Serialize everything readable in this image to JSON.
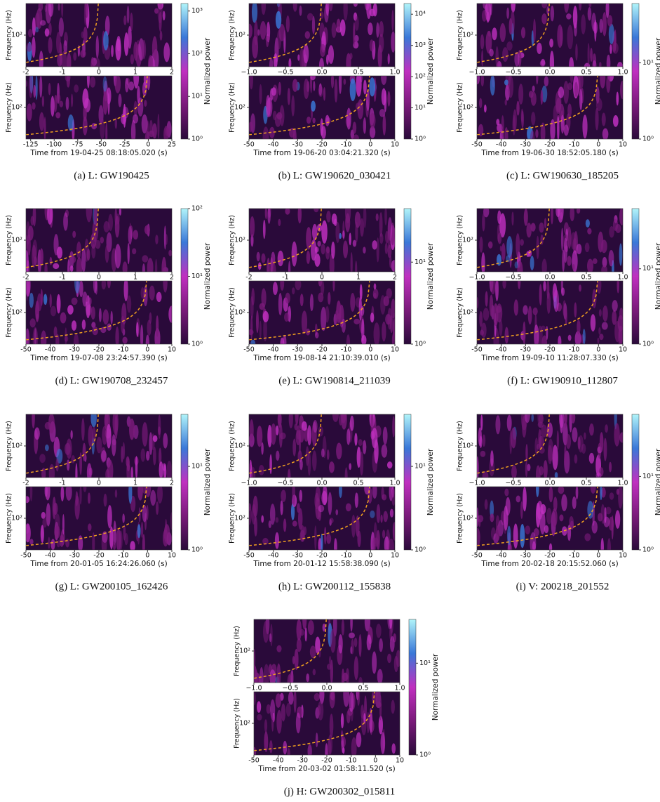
{
  "chart_data": [
    {
      "type": "spectrogram",
      "caption": "(a) L: GW190425",
      "ylabel": "Frequency (Hz)",
      "yscale": "log",
      "ylim": [
        20,
        500
      ],
      "yticks": [
        {
          "value": 100,
          "label": "10²"
        }
      ],
      "subplots": [
        {
          "xlim": [
            -2,
            2
          ],
          "xticks": [
            -2,
            -1,
            0,
            1,
            2
          ]
        },
        {
          "xlim": [
            -130,
            25
          ],
          "xticks": [
            -125,
            -100,
            -75,
            -50,
            -25,
            0,
            25
          ],
          "xlabel": "Time from 19-04-25 08:18:05.020 (s)"
        }
      ],
      "colorbar": {
        "label": "Normalized power",
        "scale": "log",
        "lim": [
          1,
          1500
        ],
        "ticks": [
          {
            "value": 1,
            "label": "10⁰"
          },
          {
            "value": 10,
            "label": "10¹"
          },
          {
            "value": 100,
            "label": "10²"
          },
          {
            "value": 1000,
            "label": "10³"
          }
        ]
      },
      "colormap": [
        "#2a0a3a",
        "#7a1a7a",
        "#c030c0",
        "#3a78d8",
        "#b0f4fa"
      ]
    },
    {
      "type": "spectrogram",
      "caption": "(b) L: GW190620_030421",
      "ylabel": "Frequency (Hz)",
      "yscale": "log",
      "ylim": [
        20,
        500
      ],
      "yticks": [
        {
          "value": 100,
          "label": "10²"
        }
      ],
      "subplots": [
        {
          "xlim": [
            -1,
            1
          ],
          "xticks": [
            {
              "value": -1,
              "label": "−1.0"
            },
            {
              "value": -0.5,
              "label": "−0.5"
            },
            {
              "value": 0,
              "label": "0.0"
            },
            {
              "value": 0.5,
              "label": "0.5"
            },
            {
              "value": 1,
              "label": "1.0"
            }
          ]
        },
        {
          "xlim": [
            -50,
            10
          ],
          "xticks": [
            -50,
            -40,
            -30,
            -20,
            -10,
            0,
            10
          ],
          "xlabel": "Time from 19-06-20 03:04:21.320 (s)"
        }
      ],
      "colorbar": {
        "label": "Normalized power",
        "scale": "log",
        "lim": [
          1,
          22000
        ],
        "ticks": [
          {
            "value": 1,
            "label": "10⁰"
          },
          {
            "value": 10,
            "label": "10¹"
          },
          {
            "value": 100,
            "label": "10²"
          },
          {
            "value": 1000,
            "label": "10³"
          },
          {
            "value": 10000,
            "label": "10⁴"
          }
        ]
      },
      "colormap": [
        "#2a0a3a",
        "#7a1a7a",
        "#c030c0",
        "#3a78d8",
        "#b0f4fa"
      ]
    },
    {
      "type": "spectrogram",
      "caption": "(c) L: GW190630_185205",
      "ylabel": "Frequency (Hz)",
      "yscale": "log",
      "ylim": [
        20,
        500
      ],
      "yticks": [
        {
          "value": 100,
          "label": "10²"
        }
      ],
      "subplots": [
        {
          "xlim": [
            -1,
            1
          ],
          "xticks": [
            {
              "value": -1,
              "label": "−1.0"
            },
            {
              "value": -0.5,
              "label": "−0.5"
            },
            {
              "value": 0,
              "label": "0.0"
            },
            {
              "value": 0.5,
              "label": "0.5"
            },
            {
              "value": 1,
              "label": "1.0"
            }
          ]
        },
        {
          "xlim": [
            -50,
            10
          ],
          "xticks": [
            -50,
            -40,
            -30,
            -20,
            -10,
            0,
            10
          ],
          "xlabel": "Time from 19-06-30 18:52:05.180 (s)"
        }
      ],
      "colorbar": {
        "label": "Normalized power",
        "scale": "log",
        "lim": [
          1,
          60
        ],
        "ticks": [
          {
            "value": 1,
            "label": "10⁰"
          },
          {
            "value": 10,
            "label": "10¹"
          }
        ]
      },
      "colormap": [
        "#2a0a3a",
        "#7a1a7a",
        "#c030c0",
        "#3a78d8",
        "#b0f4fa"
      ]
    },
    {
      "type": "spectrogram",
      "caption": "(d) L: GW190708_232457",
      "ylabel": "Frequency (Hz)",
      "yscale": "log",
      "ylim": [
        20,
        500
      ],
      "yticks": [
        {
          "value": 100,
          "label": "10²"
        }
      ],
      "subplots": [
        {
          "xlim": [
            -2,
            2
          ],
          "xticks": [
            -2,
            -1,
            0,
            1,
            2
          ]
        },
        {
          "xlim": [
            -50,
            10
          ],
          "xticks": [
            -50,
            -40,
            -30,
            -20,
            -10,
            0,
            10
          ],
          "xlabel": "Time from 19-07-08 23:24:57.390 (s)"
        }
      ],
      "colorbar": {
        "label": "Normalized power",
        "scale": "log",
        "lim": [
          1,
          100
        ],
        "ticks": [
          {
            "value": 1,
            "label": "10⁰"
          },
          {
            "value": 10,
            "label": "10¹"
          },
          {
            "value": 100,
            "label": "10²"
          }
        ]
      },
      "colormap": [
        "#2a0a3a",
        "#7a1a7a",
        "#c030c0",
        "#3a78d8",
        "#b0f4fa"
      ]
    },
    {
      "type": "spectrogram",
      "caption": "(e) L: GW190814_211039",
      "ylabel": "Frequency (Hz)",
      "yscale": "log",
      "ylim": [
        20,
        500
      ],
      "yticks": [
        {
          "value": 100,
          "label": "10²"
        }
      ],
      "subplots": [
        {
          "xlim": [
            -2,
            2
          ],
          "xticks": [
            -2,
            -1,
            0,
            1,
            2
          ]
        },
        {
          "xlim": [
            -50,
            10
          ],
          "xticks": [
            -50,
            -40,
            -30,
            -20,
            -10,
            0,
            10
          ],
          "xlabel": "Time from 19-08-14 21:10:39.010 (s)"
        }
      ],
      "colorbar": {
        "label": "Normalized power",
        "scale": "log",
        "lim": [
          1,
          45
        ],
        "ticks": [
          {
            "value": 1,
            "label": "10⁰"
          },
          {
            "value": 10,
            "label": "10¹"
          }
        ]
      },
      "colormap": [
        "#2a0a3a",
        "#7a1a7a",
        "#c030c0",
        "#3a78d8",
        "#b0f4fa"
      ]
    },
    {
      "type": "spectrogram",
      "caption": "(f) L: GW190910_112807",
      "ylabel": "Frequency (Hz)",
      "yscale": "log",
      "ylim": [
        20,
        500
      ],
      "yticks": [
        {
          "value": 100,
          "label": "10²"
        }
      ],
      "subplots": [
        {
          "xlim": [
            -1,
            1
          ],
          "xticks": [
            {
              "value": -1,
              "label": "−1.0"
            },
            {
              "value": -0.5,
              "label": "−0.5"
            },
            {
              "value": 0,
              "label": "0.0"
            },
            {
              "value": 0.5,
              "label": "0.5"
            },
            {
              "value": 1,
              "label": "1.0"
            }
          ]
        },
        {
          "xlim": [
            -50,
            10
          ],
          "xticks": [
            -50,
            -40,
            -30,
            -20,
            -10,
            0,
            10
          ],
          "xlabel": "Time from 19-09-10 11:28:07.330 (s)"
        }
      ],
      "colorbar": {
        "label": "Normalized power",
        "scale": "log",
        "lim": [
          1,
          63
        ],
        "ticks": [
          {
            "value": 1,
            "label": "10⁰"
          },
          {
            "value": 10,
            "label": "10¹"
          }
        ]
      },
      "colormap": [
        "#2a0a3a",
        "#7a1a7a",
        "#c030c0",
        "#3a78d8",
        "#b0f4fa"
      ]
    },
    {
      "type": "spectrogram",
      "caption": "(g) L: GW200105_162426",
      "ylabel": "Frequency (Hz)",
      "yscale": "log",
      "ylim": [
        20,
        500
      ],
      "yticks": [
        {
          "value": 100,
          "label": "10²"
        }
      ],
      "subplots": [
        {
          "xlim": [
            -2,
            2
          ],
          "xticks": [
            -2,
            -1,
            0,
            1,
            2
          ]
        },
        {
          "xlim": [
            -50,
            10
          ],
          "xticks": [
            -50,
            -40,
            -30,
            -20,
            -10,
            0,
            10
          ],
          "xlabel": "Time from 20-01-05 16:24:26.060 (s)"
        }
      ],
      "colorbar": {
        "label": "Normalized power",
        "scale": "log",
        "lim": [
          1,
          42
        ],
        "ticks": [
          {
            "value": 1,
            "label": "10⁰"
          },
          {
            "value": 10,
            "label": "10¹"
          }
        ]
      },
      "colormap": [
        "#2a0a3a",
        "#7a1a7a",
        "#c030c0",
        "#3a78d8",
        "#b0f4fa"
      ]
    },
    {
      "type": "spectrogram",
      "caption": "(h) L: GW200112_155838",
      "ylabel": "Frequency (Hz)",
      "yscale": "log",
      "ylim": [
        20,
        500
      ],
      "yticks": [
        {
          "value": 100,
          "label": "10²"
        }
      ],
      "subplots": [
        {
          "xlim": [
            -1,
            1
          ],
          "xticks": [
            {
              "value": -1,
              "label": "−1.0"
            },
            {
              "value": -0.5,
              "label": "−0.5"
            },
            {
              "value": 0,
              "label": "0.0"
            },
            {
              "value": 0.5,
              "label": "0.5"
            },
            {
              "value": 1,
              "label": "1.0"
            }
          ]
        },
        {
          "xlim": [
            -50,
            10
          ],
          "xticks": [
            -50,
            -40,
            -30,
            -20,
            -10,
            0,
            10
          ],
          "xlabel": "Time from 20-01-12 15:58:38.090 (s)"
        }
      ],
      "colorbar": {
        "label": "Normalized power",
        "scale": "log",
        "lim": [
          1,
          42
        ],
        "ticks": [
          {
            "value": 1,
            "label": "10⁰"
          },
          {
            "value": 10,
            "label": "10¹"
          }
        ]
      },
      "colormap": [
        "#2a0a3a",
        "#7a1a7a",
        "#c030c0",
        "#3a78d8",
        "#b0f4fa"
      ]
    },
    {
      "type": "spectrogram",
      "caption": "(i) V: 200218_201552",
      "ylabel": "Frequency (Hz)",
      "yscale": "log",
      "ylim": [
        20,
        500
      ],
      "yticks": [
        {
          "value": 100,
          "label": "10²"
        }
      ],
      "subplots": [
        {
          "xlim": [
            -1,
            1
          ],
          "xticks": [
            {
              "value": -1,
              "label": "−1.0"
            },
            {
              "value": -0.5,
              "label": "−0.5"
            },
            {
              "value": 0,
              "label": "0.0"
            },
            {
              "value": 0.5,
              "label": "0.5"
            },
            {
              "value": 1,
              "label": "1.0"
            }
          ]
        },
        {
          "xlim": [
            -50,
            10
          ],
          "xticks": [
            -50,
            -40,
            -30,
            -20,
            -10,
            0,
            10
          ],
          "xlabel": "Time from 20-02-18 20:15:52.060 (s)"
        }
      ],
      "colorbar": {
        "label": "Normalized power",
        "scale": "log",
        "lim": [
          1,
          70
        ],
        "ticks": [
          {
            "value": 1,
            "label": "10⁰"
          },
          {
            "value": 10,
            "label": "10¹"
          }
        ]
      },
      "colormap": [
        "#2a0a3a",
        "#7a1a7a",
        "#c030c0",
        "#3a78d8",
        "#b0f4fa"
      ]
    },
    {
      "type": "spectrogram",
      "caption": "(j) H: GW200302_015811",
      "ylabel": "Frequency (Hz)",
      "yscale": "log",
      "ylim": [
        20,
        500
      ],
      "yticks": [
        {
          "value": 100,
          "label": "10²"
        }
      ],
      "subplots": [
        {
          "xlim": [
            -1,
            1
          ],
          "xticks": [
            {
              "value": -1,
              "label": "−1.0"
            },
            {
              "value": -0.5,
              "label": "−0.5"
            },
            {
              "value": 0,
              "label": "0.0"
            },
            {
              "value": 0.5,
              "label": "0.5"
            },
            {
              "value": 1,
              "label": "1.0"
            }
          ]
        },
        {
          "xlim": [
            -50,
            10
          ],
          "xticks": [
            -50,
            -40,
            -30,
            -20,
            -10,
            0,
            10
          ],
          "xlabel": "Time from 20-03-02 01:58:11.520 (s)"
        }
      ],
      "colorbar": {
        "label": "Normalized power",
        "scale": "log",
        "lim": [
          1,
          30
        ],
        "ticks": [
          {
            "value": 1,
            "label": "10⁰"
          },
          {
            "value": 10,
            "label": "10¹"
          }
        ]
      },
      "colormap": [
        "#2a0a3a",
        "#7a1a7a",
        "#c030c0",
        "#3a78d8",
        "#b0f4fa"
      ]
    }
  ]
}
